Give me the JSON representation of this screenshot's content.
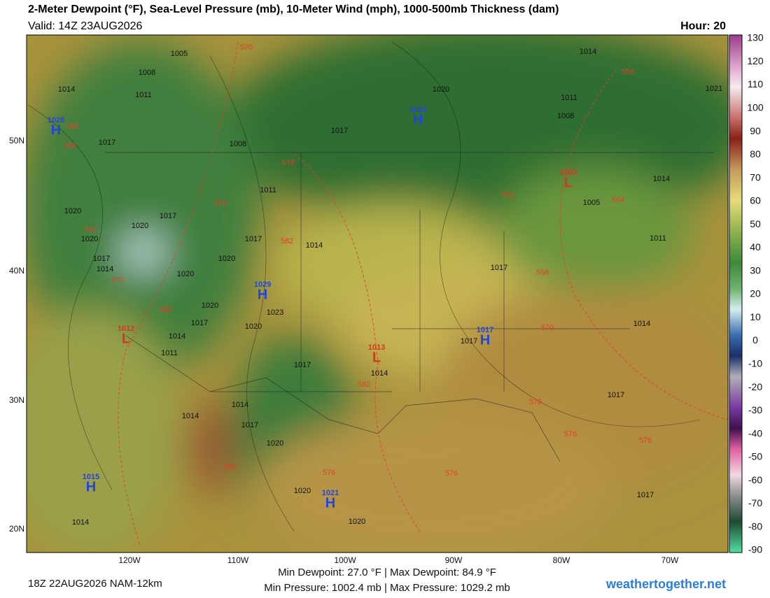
{
  "header": {
    "title": "2-Meter Dewpoint (°F), Sea-Level Pressure (mb), 10-Meter Wind (mph), 1000-500mb Thickness (dam)",
    "valid": "Valid: 14Z 23AUG2026",
    "hour": "Hour: 20"
  },
  "colorbar": {
    "ticks": [
      130,
      120,
      110,
      100,
      90,
      80,
      70,
      60,
      50,
      40,
      30,
      20,
      10,
      0,
      -10,
      -20,
      -30,
      -40,
      -50,
      -60,
      -70,
      -80,
      -90
    ]
  },
  "map": {
    "lat_labels": [
      "50N",
      "40N",
      "30N",
      "20N"
    ],
    "lon_labels": [
      "120W",
      "110W",
      "100W",
      "90W",
      "80W",
      "70W"
    ],
    "centers": [
      {
        "letter": "H",
        "pressure": 1026
      },
      {
        "letter": "H",
        "pressure": 1021
      },
      {
        "letter": "L",
        "pressure": 1003
      },
      {
        "letter": "H",
        "pressure": 1029
      },
      {
        "letter": "L",
        "pressure": 1012
      },
      {
        "letter": "H",
        "pressure": 1017
      },
      {
        "letter": "L",
        "pressure": 1013
      },
      {
        "letter": "H",
        "pressure": 1015
      },
      {
        "letter": "H",
        "pressure": 1021
      }
    ],
    "isobar_labels": [
      1005,
      1008,
      1014,
      1011,
      1014,
      1020,
      1011,
      1008,
      1017,
      1017,
      1008,
      1011,
      1005,
      1014,
      1020,
      1020,
      1017,
      1020,
      1017,
      1014,
      1017,
      1014,
      1020,
      1020,
      1017,
      1020,
      1023,
      1017,
      1020,
      1014,
      1011,
      1017,
      1017,
      1014,
      1014,
      1017,
      1014,
      1014,
      1017,
      1020,
      1020,
      1020,
      1014,
      1017,
      1021,
      1011
    ],
    "thickness_labels": [
      570,
      558,
      558,
      558,
      576,
      576,
      552,
      564,
      564,
      582,
      570,
      558,
      582,
      570,
      582,
      576,
      576,
      576,
      588,
      576,
      576
    ]
  },
  "footer": {
    "run": "18Z 22AUG2026 NAM-12km",
    "dewpoint_range": "Min Dewpoint: 27.0 °F | Max Dewpoint: 84.9 °F",
    "pressure_range": "Min Pressure: 1002.4 mb | Max Pressure: 1029.2 mb",
    "site": "weathertogether.net"
  }
}
